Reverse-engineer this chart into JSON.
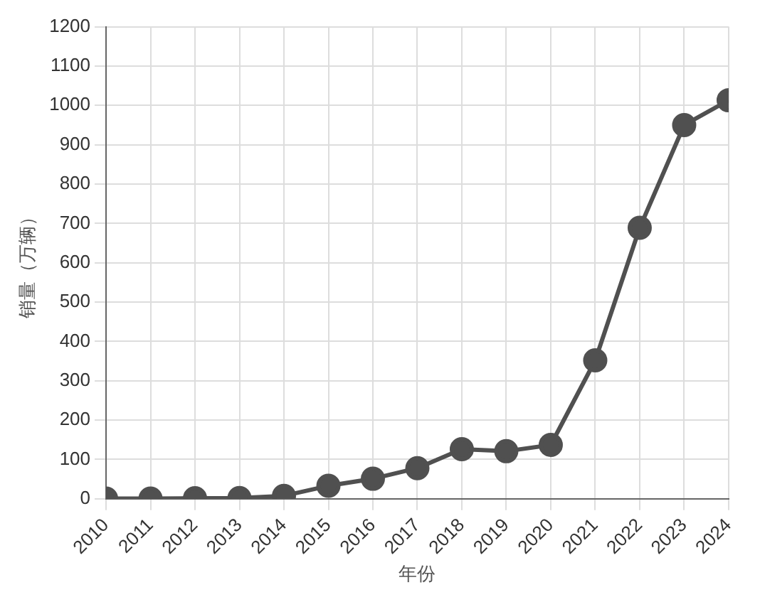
{
  "chart_data": {
    "type": "line",
    "xlabel": "年份",
    "ylabel": "销量（万辆）",
    "x": [
      2010,
      2011,
      2012,
      2013,
      2014,
      2015,
      2016,
      2017,
      2018,
      2019,
      2020,
      2021,
      2022,
      2023,
      2024
    ],
    "series": [
      {
        "color": "#505050",
        "values": [
          0.5,
          0.8,
          1.3,
          1.8,
          7.5,
          33,
          51,
          78,
          126,
          121,
          137,
          352,
          689,
          950,
          1013
        ]
      }
    ],
    "xlim": [
      2010,
      2024
    ],
    "xticks": [
      2010,
      2011,
      2012,
      2013,
      2014,
      2015,
      2016,
      2017,
      2018,
      2019,
      2020,
      2021,
      2022,
      2023,
      2024
    ],
    "ylim": [
      0,
      1200
    ],
    "yticks": [
      0,
      100,
      200,
      300,
      400,
      500,
      600,
      700,
      800,
      900,
      1000,
      1100,
      1200
    ],
    "grid": true,
    "legend": false,
    "marker": "circle",
    "line_style": "solid"
  }
}
